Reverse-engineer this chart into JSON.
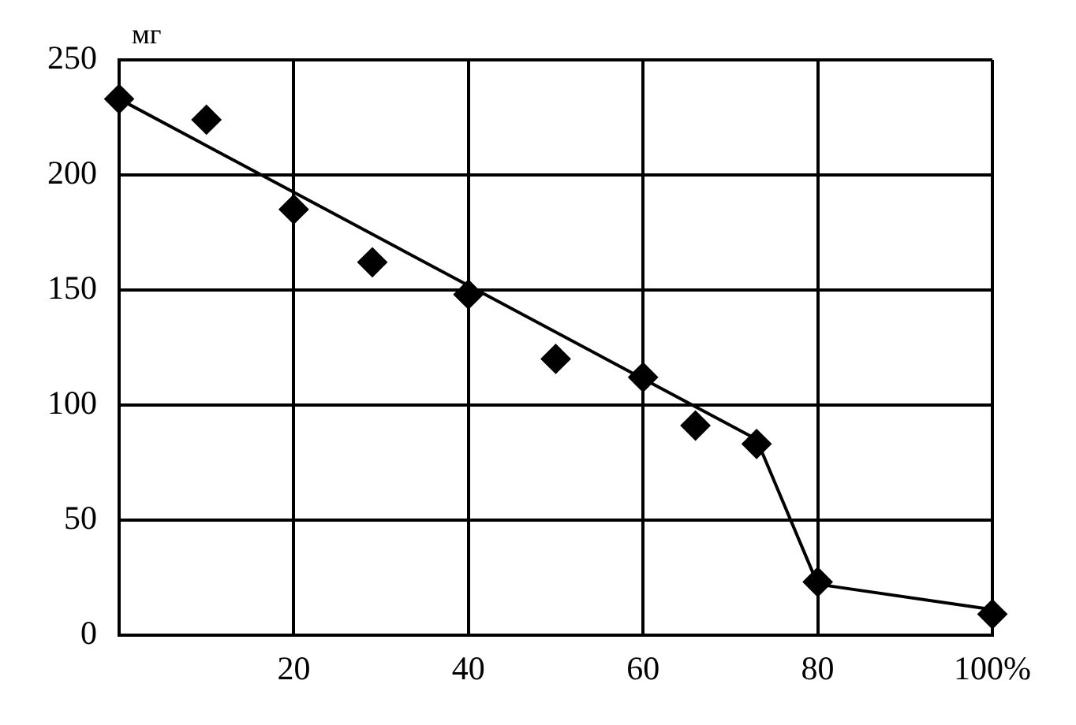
{
  "chart_data": {
    "type": "scatter",
    "ylabel": "мг",
    "xlim": [
      0,
      100
    ],
    "ylim": [
      0,
      250
    ],
    "xticks": [
      {
        "value": 0,
        "label": null
      },
      20,
      40,
      60,
      80,
      {
        "value": 100,
        "label": "100%"
      }
    ],
    "yticks": [
      0,
      50,
      100,
      150,
      200,
      250
    ],
    "grid": true,
    "legend": false,
    "series": [
      {
        "color": "#000000",
        "marker": "diamond",
        "x": [
          0,
          10,
          20,
          29,
          40,
          50,
          60,
          66,
          73,
          80,
          100
        ],
        "values": [
          233,
          224,
          185,
          162,
          148,
          120,
          112,
          91,
          83,
          23,
          9
        ]
      },
      {
        "type": "line",
        "color": "#000000",
        "marker": "none",
        "line_style": "solid",
        "x": [
          0,
          73,
          80,
          100
        ],
        "values": [
          233,
          85,
          22,
          11
        ]
      }
    ]
  }
}
